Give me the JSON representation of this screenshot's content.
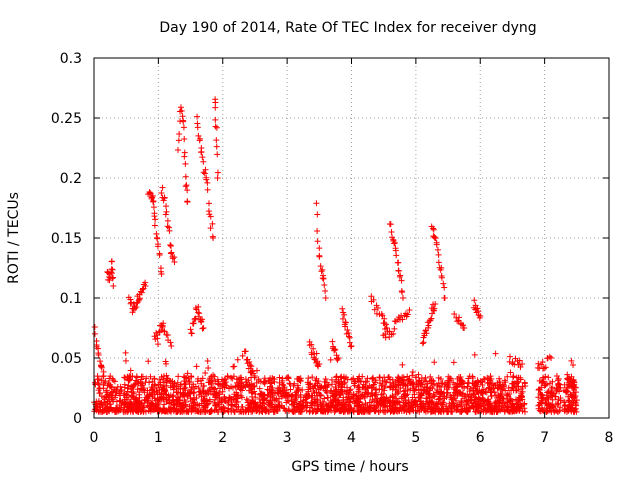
{
  "chart_data": {
    "type": "scatter",
    "title": "Day 190 of 2014, Rate Of TEC Index for receiver dyng",
    "xlabel": "GPS time / hours",
    "ylabel": "ROTI / TECUs",
    "xlim": [
      0,
      8
    ],
    "ylim": [
      0,
      0.3
    ],
    "xticks": [
      "0",
      "1",
      "2",
      "3",
      "4",
      "5",
      "6",
      "7",
      "8"
    ],
    "yticks": [
      "0",
      "0.05",
      "0.1",
      "0.15",
      "0.2",
      "0.25",
      "0.3"
    ],
    "xtick_values": [
      0,
      1,
      2,
      3,
      4,
      5,
      6,
      7,
      8
    ],
    "ytick_values": [
      0,
      0.05,
      0.1,
      0.15,
      0.2,
      0.25,
      0.3
    ],
    "grid": true,
    "marker": "+",
    "color": "#ff0000",
    "series": [
      {
        "name": "ROTI",
        "baseline": {
          "x_range": [
            0.0,
            7.5
          ],
          "y_range": [
            0.005,
            0.035
          ],
          "gaps": [
            [
              6.7,
              6.9
            ],
            [
              7.25,
              7.3
            ]
          ]
        },
        "arcs": [
          [
            [
              0.0,
              0.075
            ],
            [
              0.05,
              0.06
            ],
            [
              0.1,
              0.045
            ],
            [
              0.15,
              0.035
            ]
          ],
          [
            [
              0.2,
              0.12
            ],
            [
              0.25,
              0.115
            ],
            [
              0.28,
              0.13
            ],
            [
              0.3,
              0.11
            ]
          ],
          [
            [
              0.55,
              0.1
            ],
            [
              0.6,
              0.09
            ],
            [
              0.65,
              0.095
            ],
            [
              0.7,
              0.1
            ],
            [
              0.75,
              0.105
            ],
            [
              0.8,
              0.11
            ]
          ],
          [
            [
              0.85,
              0.19
            ],
            [
              0.9,
              0.185
            ],
            [
              0.92,
              0.18
            ],
            [
              0.95,
              0.16
            ],
            [
              1.0,
              0.14
            ],
            [
              1.05,
              0.12
            ]
          ],
          [
            [
              1.05,
              0.19
            ],
            [
              1.1,
              0.18
            ],
            [
              1.15,
              0.16
            ],
            [
              1.2,
              0.14
            ],
            [
              1.25,
              0.13
            ]
          ],
          [
            [
              1.3,
              0.22
            ],
            [
              1.35,
              0.26
            ],
            [
              1.4,
              0.24
            ],
            [
              1.42,
              0.2
            ],
            [
              1.45,
              0.18
            ]
          ],
          [
            [
              1.6,
              0.25
            ],
            [
              1.65,
              0.23
            ],
            [
              1.7,
              0.21
            ],
            [
              1.75,
              0.2
            ],
            [
              1.8,
              0.17
            ],
            [
              1.85,
              0.15
            ]
          ],
          [
            [
              1.88,
              0.265
            ],
            [
              1.9,
              0.24
            ],
            [
              1.92,
              0.2
            ]
          ],
          [
            [
              1.5,
              0.07
            ],
            [
              1.55,
              0.08
            ],
            [
              1.6,
              0.09
            ],
            [
              1.65,
              0.085
            ],
            [
              1.7,
              0.075
            ]
          ],
          [
            [
              0.95,
              0.07
            ],
            [
              1.0,
              0.065
            ],
            [
              1.05,
              0.08
            ],
            [
              1.1,
              0.075
            ],
            [
              1.2,
              0.06
            ]
          ],
          [
            [
              2.35,
              0.055
            ],
            [
              2.4,
              0.045
            ],
            [
              2.45,
              0.04
            ],
            [
              2.5,
              0.035
            ]
          ],
          [
            [
              3.35,
              0.062
            ],
            [
              3.4,
              0.055
            ],
            [
              3.45,
              0.05
            ],
            [
              3.5,
              0.045
            ]
          ],
          [
            [
              3.45,
              0.175
            ],
            [
              3.5,
              0.135
            ],
            [
              3.55,
              0.12
            ],
            [
              3.6,
              0.1
            ]
          ],
          [
            [
              3.7,
              0.06
            ],
            [
              3.75,
              0.055
            ],
            [
              3.8,
              0.05
            ]
          ],
          [
            [
              3.85,
              0.088
            ],
            [
              3.9,
              0.08
            ],
            [
              3.95,
              0.07
            ],
            [
              4.0,
              0.06
            ]
          ],
          [
            [
              4.3,
              0.1
            ],
            [
              4.4,
              0.09
            ],
            [
              4.5,
              0.08
            ],
            [
              4.55,
              0.075
            ]
          ],
          [
            [
              4.6,
              0.16
            ],
            [
              4.65,
              0.15
            ],
            [
              4.7,
              0.135
            ],
            [
              4.75,
              0.12
            ],
            [
              4.8,
              0.1
            ]
          ],
          [
            [
              4.5,
              0.065
            ],
            [
              4.6,
              0.07
            ],
            [
              4.7,
              0.08
            ],
            [
              4.8,
              0.085
            ],
            [
              4.9,
              0.09
            ]
          ],
          [
            [
              5.25,
              0.16
            ],
            [
              5.3,
              0.15
            ],
            [
              5.35,
              0.135
            ],
            [
              5.4,
              0.12
            ],
            [
              5.45,
              0.1
            ]
          ],
          [
            [
              5.1,
              0.06
            ],
            [
              5.15,
              0.07
            ],
            [
              5.2,
              0.08
            ],
            [
              5.25,
              0.09
            ],
            [
              5.3,
              0.095
            ]
          ],
          [
            [
              5.6,
              0.085
            ],
            [
              5.7,
              0.08
            ],
            [
              5.75,
              0.075
            ]
          ],
          [
            [
              5.9,
              0.095
            ],
            [
              5.95,
              0.09
            ],
            [
              6.0,
              0.085
            ]
          ],
          [
            [
              6.45,
              0.05
            ],
            [
              6.55,
              0.048
            ],
            [
              6.65,
              0.045
            ]
          ],
          [
            [
              6.9,
              0.04
            ],
            [
              7.0,
              0.045
            ],
            [
              7.1,
              0.05
            ]
          ],
          [
            [
              7.35,
              0.035
            ],
            [
              7.4,
              0.03
            ],
            [
              7.45,
              0.025
            ]
          ]
        ]
      }
    ]
  }
}
